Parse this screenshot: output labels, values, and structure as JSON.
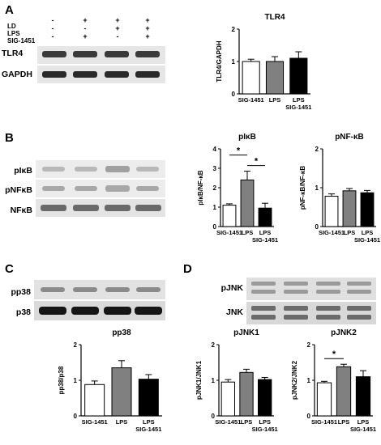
{
  "panels": {
    "A": {
      "letter": "A",
      "conditions": [
        {
          "label": "LD",
          "signs": [
            "-",
            "+",
            "+",
            "+"
          ]
        },
        {
          "label": "LPS",
          "signs": [
            "-",
            "-",
            "+",
            "+"
          ]
        },
        {
          "label": "SIG-1451",
          "signs": [
            "-",
            "+",
            "-",
            "+"
          ]
        }
      ],
      "blots": [
        "TLR4",
        "GAPDH"
      ]
    },
    "B": {
      "letter": "B",
      "blots": [
        "pIκB",
        "pNFκB",
        "NFκB"
      ]
    },
    "C": {
      "letter": "C",
      "blots": [
        "pp38",
        "p38"
      ]
    },
    "D": {
      "letter": "D",
      "blots": [
        "pJNK",
        "JNK"
      ]
    }
  },
  "colors": {
    "bar_1": "#ffffff",
    "bar_2": "#808080",
    "bar_3": "#000000",
    "blot_bg": "#e8e8e8",
    "band": "#2a2a2a"
  },
  "chart_data": [
    {
      "id": "tlr4",
      "type": "bar",
      "title": "TLR4",
      "ylabel": "TLR4/GAPDH",
      "categories": [
        "SIG-1451",
        "LPS",
        "LPS\nSIG-1451"
      ],
      "values": [
        1.0,
        1.0,
        1.1
      ],
      "errors": [
        0.07,
        0.15,
        0.2
      ],
      "ylim": [
        0,
        2
      ],
      "yticks": [
        0,
        1,
        2
      ],
      "significance": []
    },
    {
      "id": "pikb",
      "type": "bar",
      "title": "pIκB",
      "ylabel": "pIκB/NF-κB",
      "categories": [
        "SIG-1451",
        "LPS",
        "LPS\nSIG-1451"
      ],
      "values": [
        1.1,
        2.4,
        0.95
      ],
      "errors": [
        0.07,
        0.45,
        0.25
      ],
      "ylim": [
        0,
        4
      ],
      "yticks": [
        0,
        1,
        2,
        3,
        4
      ],
      "significance": [
        {
          "from": 0,
          "to": 1,
          "label": "*"
        },
        {
          "from": 1,
          "to": 2,
          "label": "*"
        }
      ]
    },
    {
      "id": "pnfkb",
      "type": "bar",
      "title": "pNF-κB",
      "ylabel": "pNF-κB/NF-κB",
      "categories": [
        "SIG-1451",
        "LPS",
        "LPS\nSIG-1451"
      ],
      "values": [
        0.78,
        0.92,
        0.87
      ],
      "errors": [
        0.06,
        0.06,
        0.06
      ],
      "ylim": [
        0,
        2
      ],
      "yticks": [
        0,
        1,
        2
      ],
      "significance": []
    },
    {
      "id": "pp38",
      "type": "bar",
      "title": "pp38",
      "ylabel": "pp38/p38",
      "categories": [
        "SIG-1451",
        "LPS",
        "LPS\nSIG-1451"
      ],
      "values": [
        0.88,
        1.35,
        1.03
      ],
      "errors": [
        0.1,
        0.2,
        0.13
      ],
      "ylim": [
        0,
        2
      ],
      "yticks": [
        0,
        1,
        2
      ],
      "significance": []
    },
    {
      "id": "pjnk1",
      "type": "bar",
      "title": "pJNK1",
      "ylabel": "pJNK1/JNK1",
      "categories": [
        "SIG-1451",
        "LPS",
        "LPS\nSIG-1451"
      ],
      "values": [
        0.95,
        1.22,
        1.02
      ],
      "errors": [
        0.07,
        0.09,
        0.06
      ],
      "ylim": [
        0,
        2
      ],
      "yticks": [
        0,
        1,
        2
      ],
      "significance": []
    },
    {
      "id": "pjnk2",
      "type": "bar",
      "title": "pJNK2",
      "ylabel": "pJNK2/JNK2",
      "categories": [
        "SIG-1451",
        "LPS",
        "LPS\nSIG-1451"
      ],
      "values": [
        0.93,
        1.38,
        1.1
      ],
      "errors": [
        0.04,
        0.07,
        0.17
      ],
      "ylim": [
        0,
        2
      ],
      "yticks": [
        0,
        1,
        2
      ],
      "significance": [
        {
          "from": 0,
          "to": 1,
          "label": "*"
        }
      ]
    }
  ]
}
